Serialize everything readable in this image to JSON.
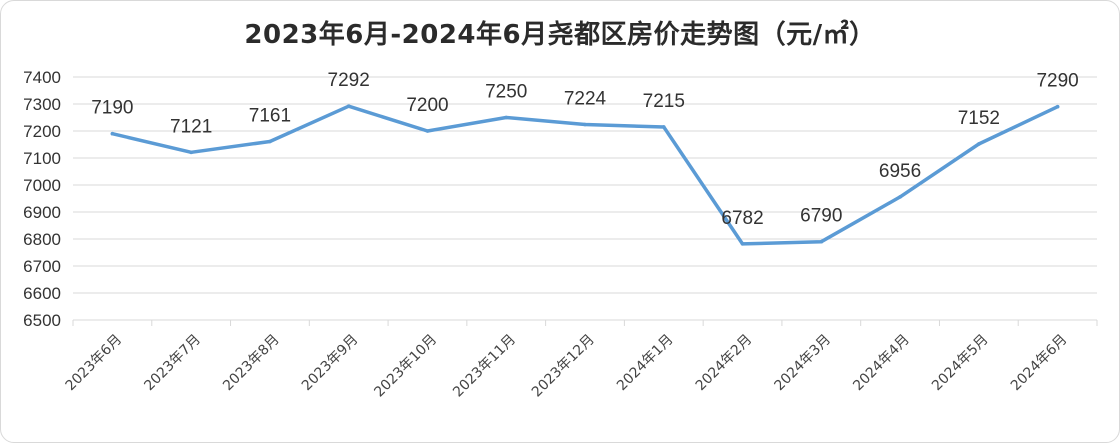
{
  "chart_data": {
    "type": "line",
    "title": "2023年6月-2024年6月尧都区房价走势图（元/㎡）",
    "xlabel": "",
    "ylabel": "",
    "categories": [
      "2023年6月",
      "2023年7月",
      "2023年8月",
      "2023年9月",
      "2023年10月",
      "2023年11月",
      "2023年12月",
      "2024年1月",
      "2024年2月",
      "2024年3月",
      "2024年4月",
      "2024年5月",
      "2024年6月"
    ],
    "series": [
      {
        "values": [
          7190,
          7121,
          7161,
          7292,
          7200,
          7250,
          7224,
          7215,
          6782,
          6790,
          6956,
          7152,
          7290
        ],
        "color": "#5b9bd5"
      }
    ],
    "ylim": [
      6500,
      7400
    ],
    "yticks": [
      6500,
      6600,
      6700,
      6800,
      6900,
      7000,
      7100,
      7200,
      7300,
      7400
    ],
    "grid": true,
    "legend": "none",
    "data_labels": true
  }
}
